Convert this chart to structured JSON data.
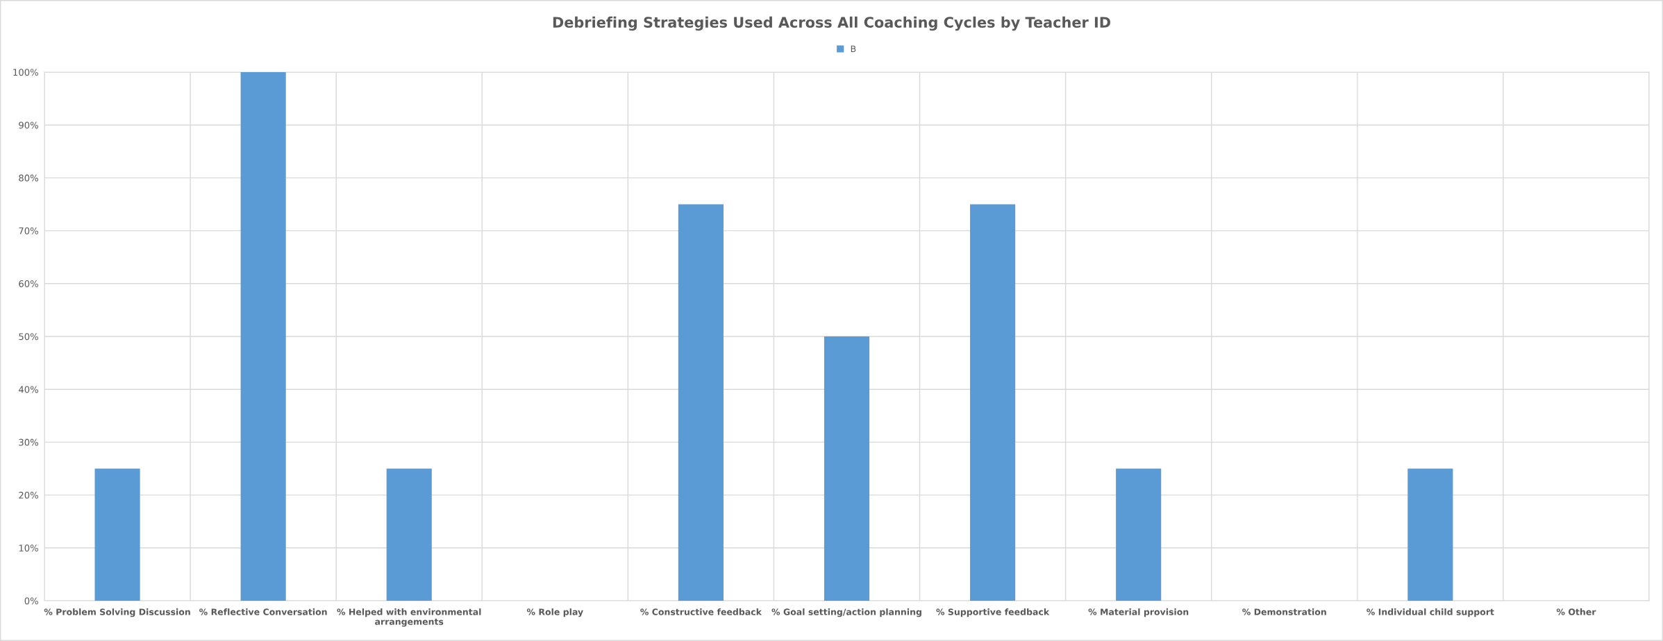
{
  "chart_data": {
    "type": "bar",
    "title": "Debriefing Strategies Used Across All Coaching Cycles by Teacher ID",
    "categories": [
      "% Problem Solving Discussion",
      "% Reflective Conversation",
      "% Helped with environmental\narrangements",
      "% Role play",
      "% Constructive feedback",
      "% Goal setting/action planning",
      "% Supportive feedback",
      "% Material provision",
      "% Demonstration",
      "% Individual child support",
      "% Other"
    ],
    "series": [
      {
        "name": "B",
        "color": "#5b9bd5",
        "values": [
          25,
          100,
          25,
          0,
          75,
          50,
          75,
          25,
          0,
          25,
          0
        ]
      }
    ],
    "ylim": [
      0,
      100
    ],
    "yticks": [
      {
        "value": 0,
        "label": "0%"
      },
      {
        "value": 10,
        "label": "10%"
      },
      {
        "value": 20,
        "label": "20%"
      },
      {
        "value": 30,
        "label": "30%"
      },
      {
        "value": 40,
        "label": "40%"
      },
      {
        "value": 50,
        "label": "50%"
      },
      {
        "value": 60,
        "label": "60%"
      },
      {
        "value": 70,
        "label": "70%"
      },
      {
        "value": 80,
        "label": "80%"
      },
      {
        "value": 90,
        "label": "90%"
      },
      {
        "value": 100,
        "label": "100%"
      }
    ],
    "grid": true,
    "legend": "top"
  }
}
